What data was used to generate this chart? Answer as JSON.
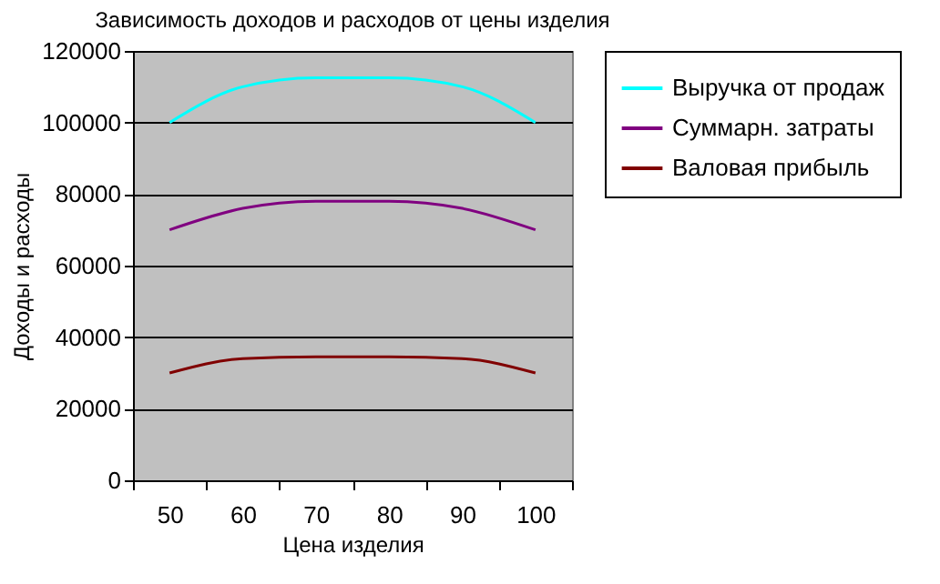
{
  "chart_data": {
    "type": "line",
    "title": "Зависимость доходов и расходов от цены изделия",
    "xlabel": "Цена изделия",
    "ylabel": "Доходы и расходы",
    "categories": [
      "50",
      "60",
      "70",
      "80",
      "90",
      "100"
    ],
    "series": [
      {
        "name": "Выручка от продаж",
        "color": "#00ffff",
        "values": [
          100000,
          110000,
          112500,
          112500,
          110000,
          100000
        ]
      },
      {
        "name": "Суммарн. затраты",
        "color": "#800080",
        "values": [
          70000,
          76000,
          78000,
          78000,
          76000,
          70000
        ]
      },
      {
        "name": "Валовая прибыль",
        "color": "#800000",
        "values": [
          30000,
          34000,
          34500,
          34500,
          34000,
          30000
        ]
      }
    ],
    "ylim": [
      0,
      120000
    ],
    "yticks": [
      0,
      20000,
      40000,
      60000,
      80000,
      100000,
      120000
    ],
    "grid": "y",
    "legend": "right",
    "marker": "none",
    "line_style": "solid"
  }
}
